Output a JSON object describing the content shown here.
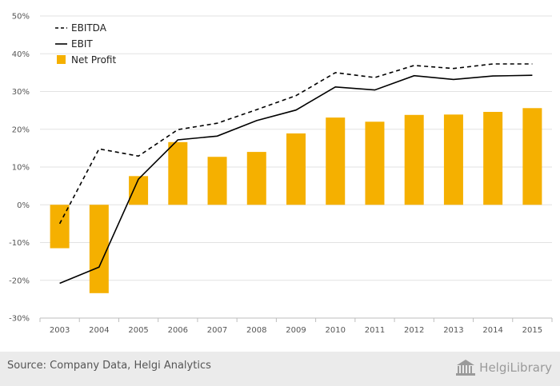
{
  "chart_data": {
    "type": "bar+line",
    "categories": [
      "2003",
      "2004",
      "2005",
      "2006",
      "2007",
      "2008",
      "2009",
      "2010",
      "2011",
      "2012",
      "2013",
      "2014",
      "2015"
    ],
    "series": [
      {
        "name": "EBITDA",
        "type": "line",
        "style": "dashed",
        "color": "#000000",
        "values": [
          -5,
          14.8,
          12.9,
          19.9,
          21.6,
          25.2,
          28.9,
          35.0,
          33.7,
          36.9,
          36.1,
          37.3,
          37.3
        ]
      },
      {
        "name": "EBIT",
        "type": "line",
        "style": "solid",
        "color": "#000000",
        "values": [
          -20.8,
          -16.5,
          6.8,
          17.2,
          18.2,
          22.3,
          25.1,
          31.2,
          30.4,
          34.2,
          33.2,
          34.1,
          34.3
        ]
      },
      {
        "name": "Net Profit",
        "type": "bar",
        "color": "#f5b000",
        "values": [
          -11.5,
          -23.4,
          7.6,
          16.6,
          12.7,
          14.0,
          18.9,
          23.1,
          22.0,
          23.8,
          23.9,
          24.6,
          25.6
        ]
      }
    ],
    "y_ticks": [
      "50%",
      "40%",
      "30%",
      "20%",
      "10%",
      "0%",
      "-10%",
      "-20%",
      "-30%"
    ],
    "ylim": [
      -30,
      50
    ],
    "grid": true,
    "legend_position": "top-left"
  },
  "footer": {
    "source": "Source: Company Data, Helgi Analytics",
    "brand": "HelgiLibrary"
  },
  "colors": {
    "bar": "#f5b000",
    "line": "#000000",
    "grid": "#e2e2e2",
    "footer_bg": "#ebebeb"
  }
}
